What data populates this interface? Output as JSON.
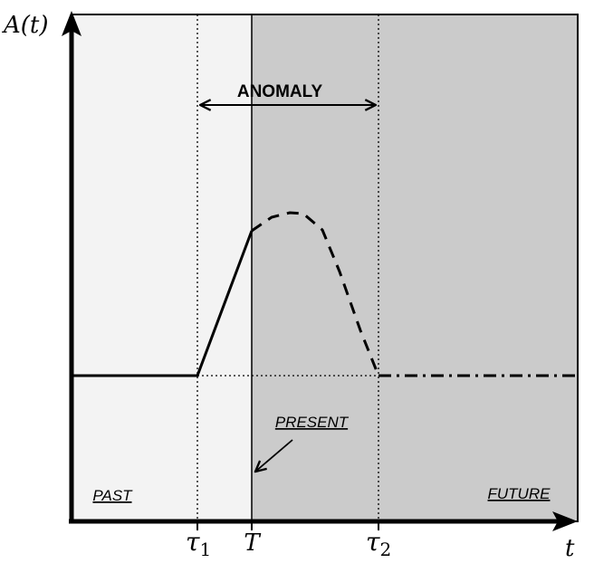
{
  "axes": {
    "y_label": "A(t)",
    "x_label": "t"
  },
  "ticks": [
    {
      "id": "tau1",
      "base": "τ",
      "sub": "1"
    },
    {
      "id": "T",
      "base": "T",
      "sub": ""
    },
    {
      "id": "tau2",
      "base": "τ",
      "sub": "2"
    }
  ],
  "labels": {
    "anomaly": "ANOMALY",
    "present": "PRESENT",
    "past": "PAST",
    "future": "FUTURE"
  },
  "colors": {
    "past_region": "#f3f3f3",
    "future_region": "#cbcbcb",
    "line": "#000000"
  }
}
